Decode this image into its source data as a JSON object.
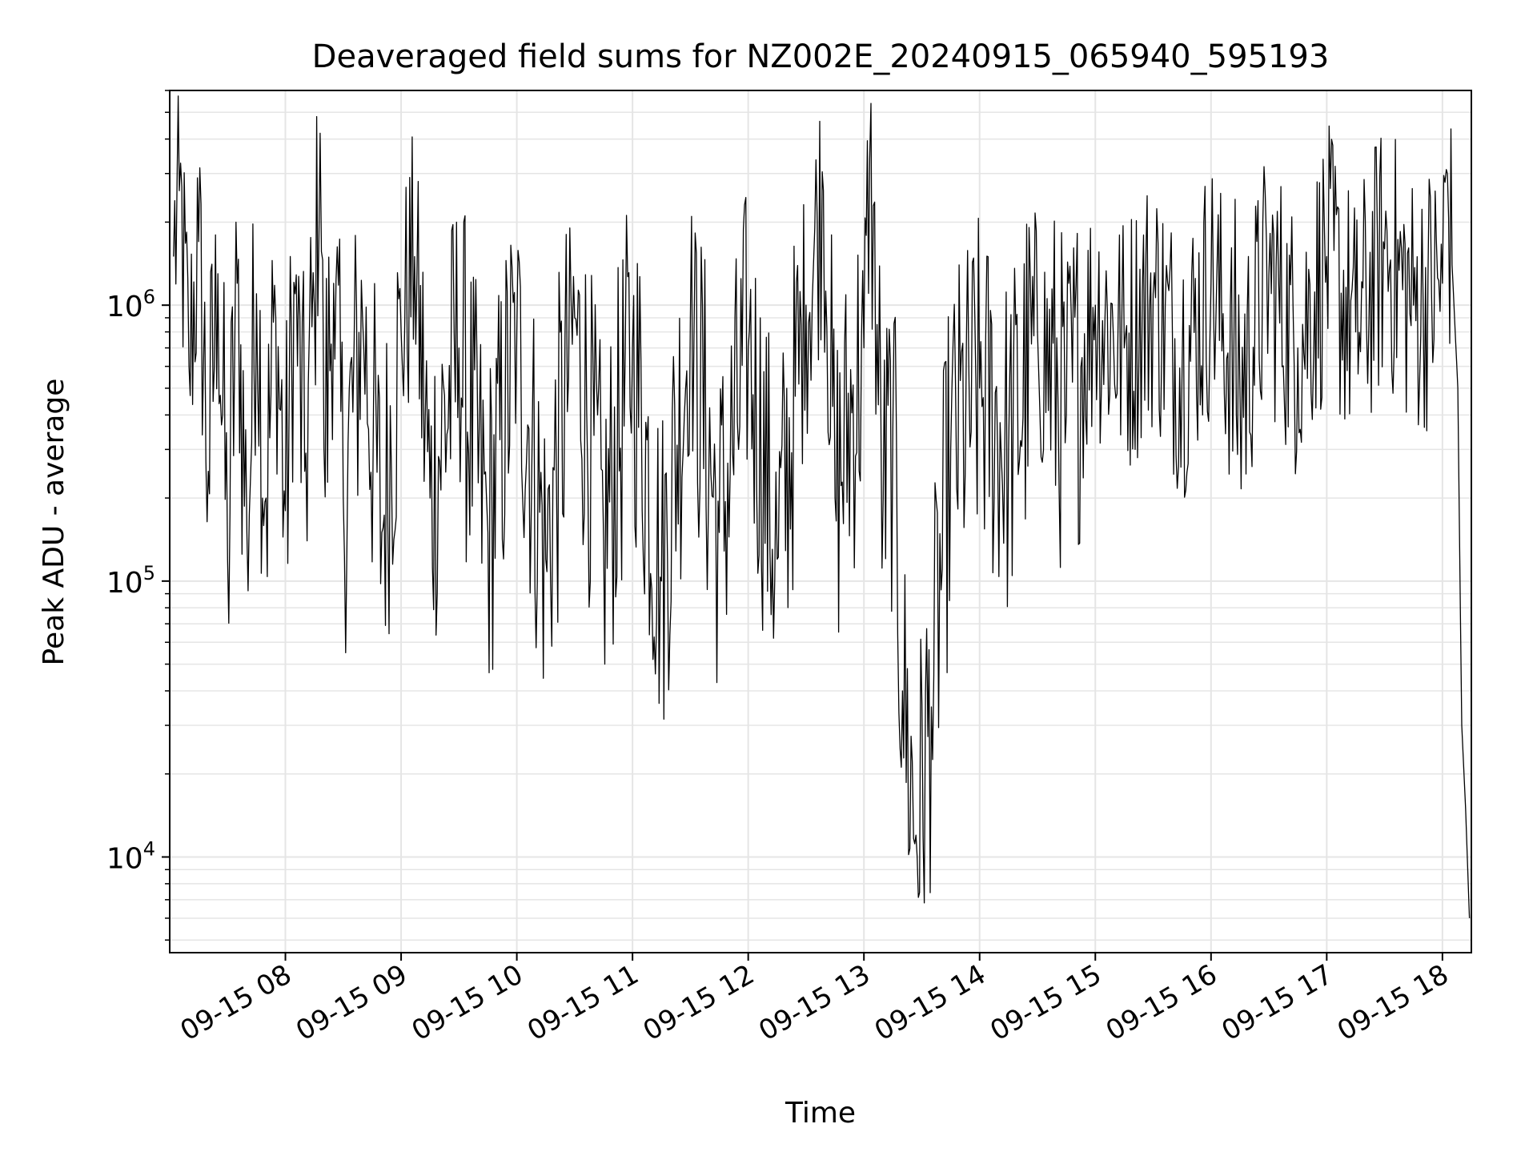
{
  "chart_data": {
    "type": "line",
    "title": "Deaveraged field sums for NZ002E_20240915_065940_595193",
    "xlabel": "Time",
    "ylabel": "Peak ADU - average",
    "yscale": "log",
    "ylim": [
      4500,
      6000000
    ],
    "xlim": [
      "2024-09-15 07:00",
      "2024-09-15 18:15"
    ],
    "x_ticks": [
      "09-15 08",
      "09-15 09",
      "09-15 10",
      "09-15 11",
      "09-15 12",
      "09-15 13",
      "09-15 14",
      "09-15 15",
      "09-15 16",
      "09-15 17",
      "09-15 18"
    ],
    "y_ticks": [
      {
        "base": "10",
        "exp": "4",
        "value": 10000
      },
      {
        "base": "10",
        "exp": "5",
        "value": 100000
      },
      {
        "base": "10",
        "exp": "6",
        "value": 1000000
      }
    ],
    "grid": true,
    "line_color": "#000000",
    "grid_color": "#e5e5e5",
    "series": [
      {
        "x": [
          "2024-09-15 07:02",
          "2024-09-15 07:05",
          "2024-09-15 07:10",
          "2024-09-15 07:15",
          "2024-09-15 07:20",
          "2024-09-15 07:25",
          "2024-09-15 07:30",
          "2024-09-15 07:35",
          "2024-09-15 07:40",
          "2024-09-15 07:45",
          "2024-09-15 07:50",
          "2024-09-15 07:55",
          "2024-09-15 08:00",
          "2024-09-15 08:05",
          "2024-09-15 08:10",
          "2024-09-15 08:15",
          "2024-09-15 08:18",
          "2024-09-15 08:20",
          "2024-09-15 08:25",
          "2024-09-15 08:30",
          "2024-09-15 08:40",
          "2024-09-15 08:50",
          "2024-09-15 09:00",
          "2024-09-15 09:07",
          "2024-09-15 09:15",
          "2024-09-15 09:30",
          "2024-09-15 09:45",
          "2024-09-15 10:00",
          "2024-09-15 10:15",
          "2024-09-15 10:30",
          "2024-09-15 10:45",
          "2024-09-15 11:00",
          "2024-09-15 11:15",
          "2024-09-15 11:30",
          "2024-09-15 11:45",
          "2024-09-15 12:00",
          "2024-09-15 12:15",
          "2024-09-15 12:30",
          "2024-09-15 12:39",
          "2024-09-15 12:45",
          "2024-09-15 13:00",
          "2024-09-15 13:03",
          "2024-09-15 13:10",
          "2024-09-15 13:15",
          "2024-09-15 13:20",
          "2024-09-15 13:27",
          "2024-09-15 13:35",
          "2024-09-15 13:45",
          "2024-09-15 14:00",
          "2024-09-15 14:15",
          "2024-09-15 14:30",
          "2024-09-15 14:45",
          "2024-09-15 15:00",
          "2024-09-15 15:15",
          "2024-09-15 15:30",
          "2024-09-15 15:45",
          "2024-09-15 16:00",
          "2024-09-15 16:15",
          "2024-09-15 16:30",
          "2024-09-15 16:45",
          "2024-09-15 17:00",
          "2024-09-15 17:15",
          "2024-09-15 17:30",
          "2024-09-15 17:45",
          "2024-09-15 18:00",
          "2024-09-15 18:02",
          "2024-09-15 18:05",
          "2024-09-15 18:08",
          "2024-09-15 18:10",
          "2024-09-15 18:12",
          "2024-09-15 18:14"
        ],
        "y": [
          1500000,
          2600000,
          600000,
          1700000,
          250000,
          1300000,
          120000,
          1200000,
          150000,
          1100000,
          200000,
          900000,
          180000,
          1100000,
          250000,
          1000000,
          4200000,
          300000,
          1200000,
          200000,
          900000,
          150000,
          800000,
          1500000,
          200000,
          700000,
          150000,
          800000,
          120000,
          900000,
          140000,
          700000,
          100000,
          900000,
          150000,
          700000,
          120000,
          1000000,
          2600000,
          200000,
          700000,
          3400000,
          200000,
          350000,
          40000,
          12000,
          35000,
          300000,
          500000,
          300000,
          800000,
          400000,
          1000000,
          700000,
          1100000,
          600000,
          1200000,
          500000,
          1300000,
          700000,
          1500000,
          800000,
          1600000,
          1000000,
          1200000,
          3100000,
          1400000,
          500000,
          30000,
          15000,
          6000
        ]
      }
    ]
  }
}
